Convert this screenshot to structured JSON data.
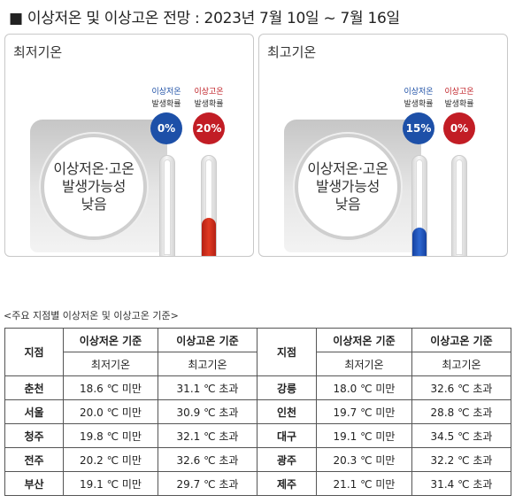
{
  "title": "■ 이상저온 및 이상고온 전망 : 2023년 7월 10일 ~ 7월 16일",
  "panels": [
    {
      "label": "최저기온",
      "circle_text": "이상저온·고온\n발생가능성\n낮음",
      "low": {
        "caption1": "이상저온",
        "caption2": "발생확률",
        "value": "0%",
        "fraction": 0.0,
        "color": "#1d50a8"
      },
      "high": {
        "caption1": "이상고온",
        "caption2": "발생확률",
        "value": "20%",
        "fraction": 0.2,
        "color": "#c21d25"
      }
    },
    {
      "label": "최고기온",
      "circle_text": "이상저온·고온\n발생가능성\n낮음",
      "low": {
        "caption1": "이상저온",
        "caption2": "발생확률",
        "value": "15%",
        "fraction": 0.15,
        "color": "#1d50a8"
      },
      "high": {
        "caption1": "이상고온",
        "caption2": "발생확률",
        "value": "0%",
        "fraction": 0.0,
        "color": "#c21d25"
      }
    }
  ],
  "table_caption": "<주요 지점별 이상저온 및 이상고온 기준>",
  "table": {
    "header_station": "지점",
    "header_low": "이상저온 기준",
    "header_high": "이상고온 기준",
    "sub_low": "최저기온",
    "sub_high": "최고기온",
    "rows": [
      [
        "춘천",
        "18.6 ℃ 미만",
        "31.1 ℃ 초과",
        "강릉",
        "18.0 ℃ 미만",
        "32.6 ℃ 초과"
      ],
      [
        "서울",
        "20.0 ℃ 미만",
        "30.9 ℃ 초과",
        "인천",
        "19.7 ℃ 미만",
        "28.8 ℃ 초과"
      ],
      [
        "청주",
        "19.8 ℃ 미만",
        "32.1 ℃ 초과",
        "대구",
        "19.1 ℃ 미만",
        "34.5 ℃ 초과"
      ],
      [
        "전주",
        "20.2 ℃ 미만",
        "32.6 ℃ 초과",
        "광주",
        "20.3 ℃ 미만",
        "32.2 ℃ 초과"
      ],
      [
        "부산",
        "19.1 ℃ 미만",
        "29.7 ℃ 초과",
        "제주",
        "21.1 ℃ 미만",
        "31.4 ℃ 초과"
      ]
    ]
  }
}
